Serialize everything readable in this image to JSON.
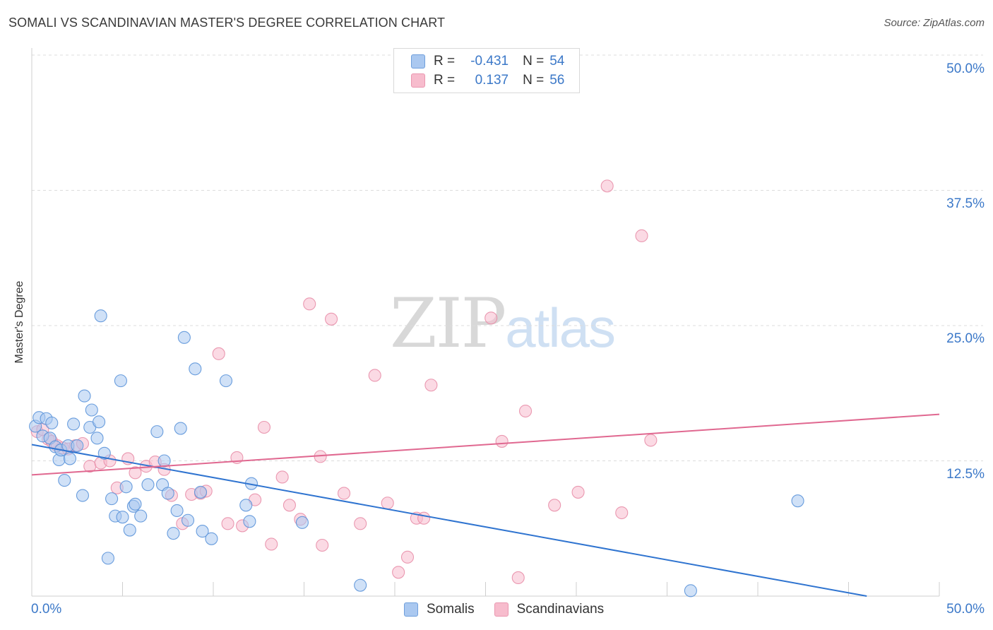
{
  "title": "SOMALI VS SCANDINAVIAN MASTER'S DEGREE CORRELATION CHART",
  "source": "Source: ZipAtlas.com",
  "watermark": {
    "zip": "ZIP",
    "atlas": "atlas"
  },
  "legend": {
    "rows": [
      {
        "r_label": "R =",
        "r_value": "-0.431",
        "n_label": "N =",
        "n_value": "54",
        "color": "#aac8f0"
      },
      {
        "r_label": "R =",
        "r_value": "0.137",
        "n_label": "N =",
        "n_value": "56",
        "color": "#f7bccd"
      }
    ]
  },
  "bottom_legend": [
    "Somalis",
    "Scandinavians"
  ],
  "x_tick_labels": {
    "min": "0.0%",
    "max": "50.0%"
  },
  "y_tick_labels": [
    "50.0%",
    "37.5%",
    "25.0%",
    "12.5%"
  ],
  "chart_data": {
    "type": "scatter",
    "title": "SOMALI VS SCANDINAVIAN MASTER'S DEGREE CORRELATION CHART",
    "xlabel": "",
    "ylabel": "Master's Degree",
    "xlim": [
      0,
      50
    ],
    "ylim": [
      0,
      50
    ],
    "yticks": [
      12.5,
      25.0,
      37.5,
      50.0
    ],
    "grid": true,
    "series": [
      {
        "name": "Somalis",
        "color": "#5b93d9",
        "fill": "#aac8f0",
        "line_color": "#2f74d0",
        "trend": [
          [
            0,
            14.0
          ],
          [
            46,
            0.0
          ]
        ],
        "points": [
          [
            0.2,
            15.7
          ],
          [
            0.4,
            16.5
          ],
          [
            0.6,
            14.8
          ],
          [
            0.8,
            16.4
          ],
          [
            1.0,
            14.6
          ],
          [
            1.1,
            16.0
          ],
          [
            1.3,
            13.8
          ],
          [
            1.5,
            12.6
          ],
          [
            1.6,
            13.5
          ],
          [
            1.8,
            10.7
          ],
          [
            2.0,
            13.9
          ],
          [
            2.1,
            12.7
          ],
          [
            2.3,
            15.9
          ],
          [
            2.5,
            13.9
          ],
          [
            2.8,
            9.3
          ],
          [
            2.9,
            18.5
          ],
          [
            3.2,
            15.6
          ],
          [
            3.3,
            17.2
          ],
          [
            3.6,
            14.6
          ],
          [
            3.7,
            16.1
          ],
          [
            3.8,
            25.9
          ],
          [
            4.0,
            13.2
          ],
          [
            4.2,
            3.5
          ],
          [
            4.4,
            9.0
          ],
          [
            4.6,
            7.4
          ],
          [
            4.9,
            19.9
          ],
          [
            5.0,
            7.3
          ],
          [
            5.2,
            10.1
          ],
          [
            5.4,
            6.1
          ],
          [
            5.6,
            8.3
          ],
          [
            5.7,
            8.5
          ],
          [
            6.0,
            7.4
          ],
          [
            6.4,
            10.3
          ],
          [
            6.9,
            15.2
          ],
          [
            7.2,
            10.3
          ],
          [
            7.3,
            12.5
          ],
          [
            7.5,
            9.5
          ],
          [
            7.8,
            5.8
          ],
          [
            8.0,
            7.9
          ],
          [
            8.2,
            15.5
          ],
          [
            8.4,
            23.9
          ],
          [
            8.6,
            7.0
          ],
          [
            9.0,
            21.0
          ],
          [
            9.3,
            9.6
          ],
          [
            9.4,
            6.0
          ],
          [
            9.9,
            5.3
          ],
          [
            10.7,
            19.9
          ],
          [
            11.8,
            8.4
          ],
          [
            12.0,
            6.9
          ],
          [
            12.1,
            10.4
          ],
          [
            14.9,
            6.8
          ],
          [
            18.1,
            1.0
          ],
          [
            36.3,
            0.5
          ],
          [
            42.2,
            8.8
          ]
        ]
      },
      {
        "name": "Scandinavians",
        "color": "#e88ea9",
        "fill": "#f7bccd",
        "line_color": "#e06890",
        "trend": [
          [
            0,
            11.2
          ],
          [
            50,
            16.8
          ]
        ],
        "points": [
          [
            0.3,
            15.2
          ],
          [
            0.6,
            15.4
          ],
          [
            0.9,
            14.5
          ],
          [
            1.1,
            14.3
          ],
          [
            1.4,
            13.9
          ],
          [
            1.7,
            13.7
          ],
          [
            2.0,
            13.6
          ],
          [
            2.4,
            13.9
          ],
          [
            2.8,
            14.1
          ],
          [
            3.2,
            12.0
          ],
          [
            3.8,
            12.3
          ],
          [
            4.3,
            12.5
          ],
          [
            4.7,
            10.0
          ],
          [
            5.3,
            12.7
          ],
          [
            5.7,
            11.4
          ],
          [
            6.3,
            12.0
          ],
          [
            6.8,
            12.4
          ],
          [
            7.3,
            11.7
          ],
          [
            7.7,
            9.3
          ],
          [
            8.3,
            6.7
          ],
          [
            8.8,
            9.4
          ],
          [
            9.3,
            9.5
          ],
          [
            9.6,
            9.7
          ],
          [
            10.3,
            22.4
          ],
          [
            10.8,
            6.7
          ],
          [
            11.3,
            12.8
          ],
          [
            11.6,
            6.5
          ],
          [
            12.3,
            8.9
          ],
          [
            12.8,
            15.6
          ],
          [
            13.2,
            4.8
          ],
          [
            13.8,
            11.0
          ],
          [
            14.2,
            8.4
          ],
          [
            14.8,
            7.1
          ],
          [
            15.3,
            27.0
          ],
          [
            15.9,
            12.9
          ],
          [
            16.0,
            4.7
          ],
          [
            16.5,
            25.6
          ],
          [
            17.2,
            9.5
          ],
          [
            18.1,
            6.7
          ],
          [
            18.9,
            20.4
          ],
          [
            19.6,
            8.6
          ],
          [
            20.2,
            2.2
          ],
          [
            20.7,
            3.6
          ],
          [
            21.2,
            7.2
          ],
          [
            21.6,
            7.2
          ],
          [
            22.0,
            19.5
          ],
          [
            25.3,
            25.7
          ],
          [
            25.9,
            14.3
          ],
          [
            26.8,
            1.7
          ],
          [
            27.2,
            17.1
          ],
          [
            28.8,
            8.4
          ],
          [
            30.1,
            9.6
          ],
          [
            31.7,
            37.9
          ],
          [
            32.5,
            7.7
          ],
          [
            33.6,
            33.3
          ],
          [
            34.1,
            14.4
          ]
        ]
      }
    ]
  }
}
